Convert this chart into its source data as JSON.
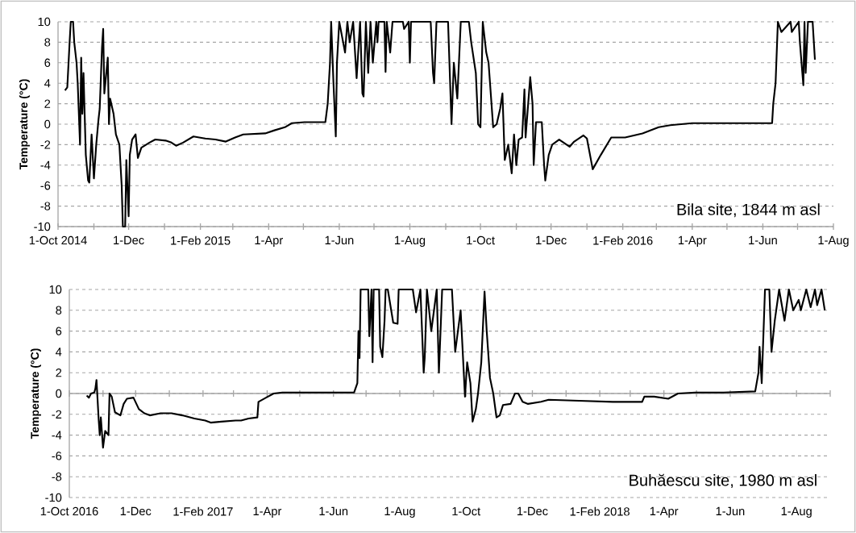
{
  "chart_data": [
    {
      "type": "line",
      "ylabel": "Temperature (°C)",
      "annotations": [
        "Bila site, 1844 m asl"
      ],
      "grid": "y",
      "color": "#000000",
      "xlim": [
        "2014-10-01",
        "2016-08-01"
      ],
      "ylim": [
        -10,
        10
      ],
      "yticks": [
        -10,
        -8,
        -6,
        -4,
        -2,
        0,
        2,
        4,
        6,
        8,
        10
      ],
      "xticks": [
        {
          "value": "2014-10-01",
          "label": "1-Oct 2014"
        },
        {
          "value": "2014-11-01",
          "label": null
        },
        {
          "value": "2014-12-01",
          "label": "1-Dec"
        },
        {
          "value": "2015-01-01",
          "label": null
        },
        {
          "value": "2015-02-01",
          "label": "1-Feb 2015"
        },
        {
          "value": "2015-03-01",
          "label": null
        },
        {
          "value": "2015-04-01",
          "label": "1-Apr"
        },
        {
          "value": "2015-05-01",
          "label": null
        },
        {
          "value": "2015-06-01",
          "label": "1-Jun"
        },
        {
          "value": "2015-07-01",
          "label": null
        },
        {
          "value": "2015-08-01",
          "label": "1-Aug"
        },
        {
          "value": "2015-09-01",
          "label": null
        },
        {
          "value": "2015-10-01",
          "label": "1-Oct"
        },
        {
          "value": "2015-11-01",
          "label": null
        },
        {
          "value": "2015-12-01",
          "label": "1-Dec"
        },
        {
          "value": "2016-01-01",
          "label": null
        },
        {
          "value": "2016-02-01",
          "label": "1-Feb 2016"
        },
        {
          "value": "2016-03-01",
          "label": null
        },
        {
          "value": "2016-04-01",
          "label": "1-Apr"
        },
        {
          "value": "2016-05-01",
          "label": null
        },
        {
          "value": "2016-06-01",
          "label": "1-Jun"
        },
        {
          "value": "2016-07-01",
          "label": null
        },
        {
          "value": "2016-08-01",
          "label": "1-Aug"
        }
      ],
      "x": [
        "2014-10-07",
        "2014-10-09",
        "2014-10-11",
        "2014-10-12",
        "2014-10-14",
        "2014-10-15",
        "2014-10-17",
        "2014-10-18",
        "2014-10-20",
        "2014-10-21",
        "2014-10-22",
        "2014-10-23",
        "2014-10-25",
        "2014-10-27",
        "2014-10-28",
        "2014-10-30",
        "2014-11-01",
        "2014-11-03",
        "2014-11-05",
        "2014-11-06",
        "2014-11-08",
        "2014-11-09",
        "2014-11-10",
        "2014-11-13",
        "2014-11-14",
        "2014-11-15",
        "2014-11-18",
        "2014-11-20",
        "2014-11-23",
        "2014-11-25",
        "2014-11-26",
        "2014-11-28",
        "2014-11-29",
        "2014-12-01",
        "2014-12-02",
        "2014-12-04",
        "2014-12-07",
        "2014-12-09",
        "2014-12-12",
        "2014-12-19",
        "2014-12-24",
        "2015-01-02",
        "2015-01-07",
        "2015-01-11",
        "2015-01-17",
        "2015-01-26",
        "2015-02-05",
        "2015-02-14",
        "2015-02-23",
        "2015-03-03",
        "2015-03-10",
        "2015-03-29",
        "2015-04-06",
        "2015-04-15",
        "2015-04-21",
        "2015-05-02",
        "2015-05-20",
        "2015-05-22",
        "2015-05-24",
        "2015-05-25",
        "2015-05-27",
        "2015-05-29",
        "2015-05-30",
        "2015-06-01",
        "2015-06-06",
        "2015-06-08",
        "2015-06-10",
        "2015-06-13",
        "2015-06-16",
        "2015-06-19",
        "2015-06-21",
        "2015-06-22",
        "2015-06-24",
        "2015-06-26",
        "2015-06-28",
        "2015-06-30",
        "2015-07-03",
        "2015-07-04",
        "2015-07-05",
        "2015-07-10",
        "2015-07-11",
        "2015-07-12",
        "2015-07-15",
        "2015-07-17",
        "2015-07-26",
        "2015-07-27",
        "2015-07-31",
        "2015-08-01",
        "2015-08-02",
        "2015-08-19",
        "2015-08-21",
        "2015-08-22",
        "2015-08-24",
        "2015-09-03",
        "2015-09-06",
        "2015-09-08",
        "2015-09-11",
        "2015-09-14",
        "2015-09-21",
        "2015-09-23",
        "2015-09-27",
        "2015-09-29",
        "2015-10-01",
        "2015-10-03",
        "2015-10-06",
        "2015-10-08",
        "2015-10-12",
        "2015-10-15",
        "2015-10-18",
        "2015-10-20",
        "2015-10-22",
        "2015-10-25",
        "2015-10-28",
        "2015-10-30",
        "2015-11-01",
        "2015-11-03",
        "2015-11-06",
        "2015-11-08",
        "2015-11-09",
        "2015-11-13",
        "2015-11-15",
        "2015-11-16",
        "2015-11-18",
        "2015-11-23",
        "2015-11-25",
        "2015-11-26",
        "2015-11-29",
        "2015-12-02",
        "2015-12-08",
        "2015-12-17",
        "2015-12-21",
        "2015-12-29",
        "2016-01-01",
        "2016-01-06",
        "2016-01-13",
        "2016-01-22",
        "2016-02-03",
        "2016-02-18",
        "2016-03-03",
        "2016-03-13",
        "2016-04-01",
        "2016-04-30",
        "2016-06-09",
        "2016-06-10",
        "2016-06-12",
        "2016-06-14",
        "2016-06-17",
        "2016-06-25",
        "2016-06-26",
        "2016-07-02",
        "2016-07-03",
        "2016-07-06",
        "2016-07-07",
        "2016-07-08",
        "2016-07-10",
        "2016-07-14",
        "2016-07-16"
      ],
      "values": [
        3.3,
        3.6,
        8,
        10,
        10,
        8,
        6,
        4,
        -2,
        6.5,
        1,
        5,
        -3,
        -5.5,
        -5.7,
        -1,
        -5.3,
        -2,
        0.5,
        1.5,
        7.5,
        9.3,
        3,
        6.5,
        0,
        2.5,
        1,
        -1,
        -2,
        -6,
        -10,
        -10,
        -3.5,
        -9,
        -3,
        -1.5,
        -1,
        -3.3,
        -2.3,
        -1.8,
        -1.5,
        -1.6,
        -1.8,
        -2.1,
        -1.8,
        -1.2,
        -1.4,
        -1.5,
        -1.7,
        -1.3,
        -1,
        -0.9,
        -0.6,
        -0.3,
        0.1,
        0.2,
        0.2,
        2,
        6,
        10,
        4,
        -1.2,
        6,
        10,
        7,
        10,
        8,
        10,
        4.5,
        10,
        3,
        2.7,
        10,
        5,
        10,
        6,
        10,
        8,
        10,
        10,
        5.1,
        10,
        7,
        10,
        10,
        9.3,
        10,
        6,
        10,
        10,
        5,
        4,
        10,
        10,
        0,
        6,
        2.5,
        10,
        10,
        8,
        5,
        0,
        -0.3,
        10,
        7,
        6,
        -0.3,
        0,
        1.5,
        3,
        -3.5,
        -2,
        -4.8,
        -1,
        -4,
        -1.5,
        -1.3,
        3.4,
        -1.3,
        4.6,
        2,
        -4,
        0.2,
        0.2,
        -4,
        -5.5,
        -3,
        -2,
        -1.5,
        -2.2,
        -1.7,
        -1.1,
        -1.4,
        -4.4,
        -3,
        -1.3,
        -1.3,
        -0.9,
        -0.3,
        -0.1,
        0.1,
        0.1,
        0.1,
        2,
        4,
        10,
        9,
        10,
        9,
        10,
        8,
        3.8,
        10,
        5,
        10,
        10,
        6.3
      ]
    },
    {
      "type": "line",
      "ylabel": "Temperature (°C)",
      "annotations": [
        "Buhăescu site, 1980 m asl"
      ],
      "grid": "y",
      "color": "#000000",
      "ref_lines": [
        {
          "axis": "y",
          "value": 0,
          "color": "#a6a6a6"
        }
      ],
      "xlim": [
        "2016-10-01",
        "2018-09-01"
      ],
      "ylim": [
        -10,
        10
      ],
      "yticks": [
        -10,
        -8,
        -6,
        -4,
        -2,
        0,
        2,
        4,
        6,
        8,
        10
      ],
      "xticks": [
        {
          "value": "2016-10-01",
          "label": "1-Oct 2016"
        },
        {
          "value": "2016-11-01",
          "label": null
        },
        {
          "value": "2016-12-01",
          "label": "1-Dec"
        },
        {
          "value": "2017-01-01",
          "label": null
        },
        {
          "value": "2017-02-01",
          "label": "1-Feb 2017"
        },
        {
          "value": "2017-03-01",
          "label": null
        },
        {
          "value": "2017-04-01",
          "label": "1-Apr"
        },
        {
          "value": "2017-05-01",
          "label": null
        },
        {
          "value": "2017-06-01",
          "label": "1-Jun"
        },
        {
          "value": "2017-07-01",
          "label": null
        },
        {
          "value": "2017-08-01",
          "label": "1-Aug"
        },
        {
          "value": "2017-09-01",
          "label": null
        },
        {
          "value": "2017-10-01",
          "label": "1-Oct"
        },
        {
          "value": "2017-11-01",
          "label": null
        },
        {
          "value": "2017-12-01",
          "label": "1-Dec"
        },
        {
          "value": "2018-01-01",
          "label": null
        },
        {
          "value": "2018-02-01",
          "label": "1-Feb 2018"
        },
        {
          "value": "2018-03-01",
          "label": null
        },
        {
          "value": "2018-04-01",
          "label": "1-Apr"
        },
        {
          "value": "2018-05-01",
          "label": null
        },
        {
          "value": "2018-06-01",
          "label": "1-Jun"
        },
        {
          "value": "2018-07-01",
          "label": null
        },
        {
          "value": "2018-08-01",
          "label": "1-Aug"
        },
        {
          "value": "2018-09-01",
          "label": null
        }
      ],
      "x": [
        "2016-10-17",
        "2016-10-19",
        "2016-10-21",
        "2016-10-24",
        "2016-10-25",
        "2016-10-26",
        "2016-10-28",
        "2016-10-29",
        "2016-10-30",
        "2016-11-01",
        "2016-11-03",
        "2016-11-06",
        "2016-11-07",
        "2016-11-09",
        "2016-11-12",
        "2016-11-17",
        "2016-11-20",
        "2016-11-23",
        "2016-11-29",
        "2016-12-04",
        "2016-12-09",
        "2016-12-14",
        "2016-12-24",
        "2017-01-03",
        "2017-01-13",
        "2017-01-24",
        "2017-02-03",
        "2017-02-08",
        "2017-02-18",
        "2017-03-03",
        "2017-03-08",
        "2017-03-15",
        "2017-03-23",
        "2017-03-24",
        "2017-03-31",
        "2017-04-07",
        "2017-04-15",
        "2017-06-20",
        "2017-06-23",
        "2017-06-24",
        "2017-06-25",
        "2017-06-26",
        "2017-07-03",
        "2017-07-04",
        "2017-07-06",
        "2017-07-07",
        "2017-07-08",
        "2017-07-13",
        "2017-07-14",
        "2017-07-16",
        "2017-07-18",
        "2017-07-19",
        "2017-07-21",
        "2017-07-26",
        "2017-07-30",
        "2017-07-31",
        "2017-08-01",
        "2017-08-13",
        "2017-08-16",
        "2017-08-20",
        "2017-08-23",
        "2017-08-24",
        "2017-08-26",
        "2017-08-30",
        "2017-09-04",
        "2017-09-06",
        "2017-09-09",
        "2017-09-18",
        "2017-09-21",
        "2017-09-26",
        "2017-09-30",
        "2017-10-02",
        "2017-10-05",
        "2017-10-07",
        "2017-10-10",
        "2017-10-12",
        "2017-10-15",
        "2017-10-18",
        "2017-10-20",
        "2017-10-23",
        "2017-10-26",
        "2017-10-29",
        "2017-11-01",
        "2017-11-04",
        "2017-11-11",
        "2017-11-15",
        "2017-11-18",
        "2017-11-22",
        "2017-11-27",
        "2017-12-09",
        "2017-12-16",
        "2018-01-13",
        "2018-02-13",
        "2018-03-12",
        "2018-03-14",
        "2018-03-23",
        "2018-04-05",
        "2018-04-14",
        "2018-04-30",
        "2018-05-26",
        "2018-06-24",
        "2018-06-27",
        "2018-06-28",
        "2018-06-30",
        "2018-07-03",
        "2018-07-07",
        "2018-07-09",
        "2018-07-12",
        "2018-07-16",
        "2018-07-21",
        "2018-07-25",
        "2018-07-29",
        "2018-08-03",
        "2018-08-05",
        "2018-08-10",
        "2018-08-14",
        "2018-08-18",
        "2018-08-20",
        "2018-08-24",
        "2018-08-27"
      ],
      "values": [
        -0.2,
        -0.4,
        0,
        0.1,
        0.5,
        1.3,
        -2.5,
        -4,
        -2.3,
        -5.2,
        -3.6,
        -4,
        0,
        -0.3,
        -1.8,
        -2.1,
        -1,
        -0.5,
        -0.4,
        -1.5,
        -1.9,
        -2.1,
        -1.9,
        -1.9,
        -2.1,
        -2.4,
        -2.6,
        -2.8,
        -2.7,
        -2.6,
        -2.6,
        -2.4,
        -2.3,
        -0.8,
        -0.4,
        0,
        0.1,
        0.1,
        1,
        6,
        3.4,
        10,
        10,
        5.5,
        10,
        3,
        10,
        10,
        4.5,
        3.5,
        7,
        10,
        10,
        6.8,
        6.7,
        10,
        10,
        10,
        7.8,
        10,
        2,
        3.5,
        10,
        6,
        10,
        2,
        10,
        10,
        4,
        8,
        -0.3,
        3,
        1,
        -2.7,
        -1.5,
        0,
        3,
        9.8,
        6,
        1.5,
        0,
        -2.3,
        -2.1,
        -1.1,
        -1,
        0,
        0,
        -0.8,
        -1,
        -0.8,
        -0.6,
        -0.7,
        -0.8,
        -0.8,
        -0.3,
        -0.3,
        -0.5,
        0,
        0.1,
        0.1,
        0.2,
        2,
        4.5,
        1,
        10,
        10,
        4,
        7,
        10,
        7,
        10,
        8,
        9,
        8,
        10,
        8.3,
        10,
        8.5,
        10,
        8
      ]
    }
  ]
}
